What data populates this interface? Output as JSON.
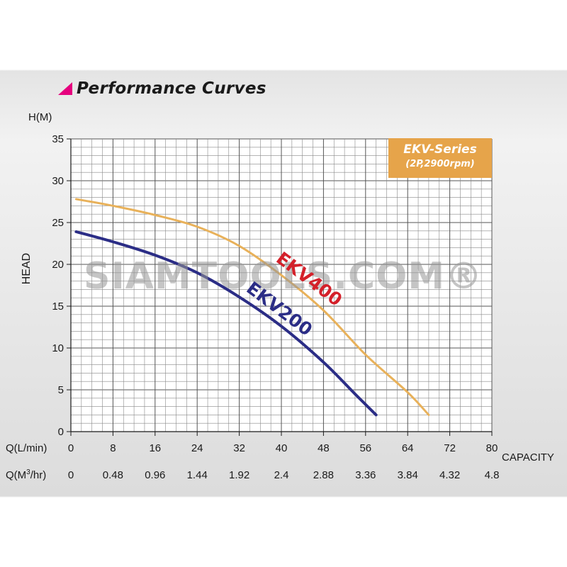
{
  "header": {
    "title": "Performance Curves",
    "triangle_color": "#e6007e"
  },
  "watermark": "SIAMTOOLS.COM®",
  "legend_box": {
    "title": "EKV-Series",
    "subtitle": "(2P,2900rpm)",
    "color": "#e6a44a"
  },
  "chart_data": {
    "type": "line",
    "title": "Performance Curves",
    "y_unit": "H(M)",
    "ylabel": "HEAD",
    "xlabel": "CAPACITY",
    "x_row_label_primary": "Q(L/min)",
    "x_row_label_secondary": "Q(M³/hr)",
    "ylim": [
      0,
      35
    ],
    "y_ticks": [
      "0",
      "5",
      "10",
      "15",
      "20",
      "25",
      "30",
      "35"
    ],
    "xlim": [
      0,
      80
    ],
    "x_ticks_lmin": [
      "0",
      "8",
      "16",
      "24",
      "32",
      "40",
      "48",
      "56",
      "64",
      "72",
      "80"
    ],
    "x_ticks_m3hr": [
      "0",
      "0.48",
      "0.96",
      "1.44",
      "1.92",
      "2.4",
      "2.88",
      "3.36",
      "3.84",
      "4.32",
      "4.8"
    ],
    "grid": true,
    "series": [
      {
        "name": "EKV400",
        "label_color": "#d4202a",
        "line_color": "#e8b15a",
        "points": [
          [
            0,
            27.8
          ],
          [
            8,
            27
          ],
          [
            16,
            25.9
          ],
          [
            24,
            24.5
          ],
          [
            32,
            22.2
          ],
          [
            40,
            18.7
          ],
          [
            48,
            14.5
          ],
          [
            56,
            9.2
          ],
          [
            64,
            4.7
          ],
          [
            68,
            2
          ]
        ]
      },
      {
        "name": "EKV200",
        "label_color": "#2b2d86",
        "line_color": "#2b2d86",
        "points": [
          [
            0,
            23.9
          ],
          [
            8,
            22.7
          ],
          [
            16,
            21.1
          ],
          [
            24,
            19
          ],
          [
            32,
            16.1
          ],
          [
            40,
            12.6
          ],
          [
            48,
            8.3
          ],
          [
            54,
            4.5
          ],
          [
            58,
            2
          ]
        ]
      }
    ]
  }
}
